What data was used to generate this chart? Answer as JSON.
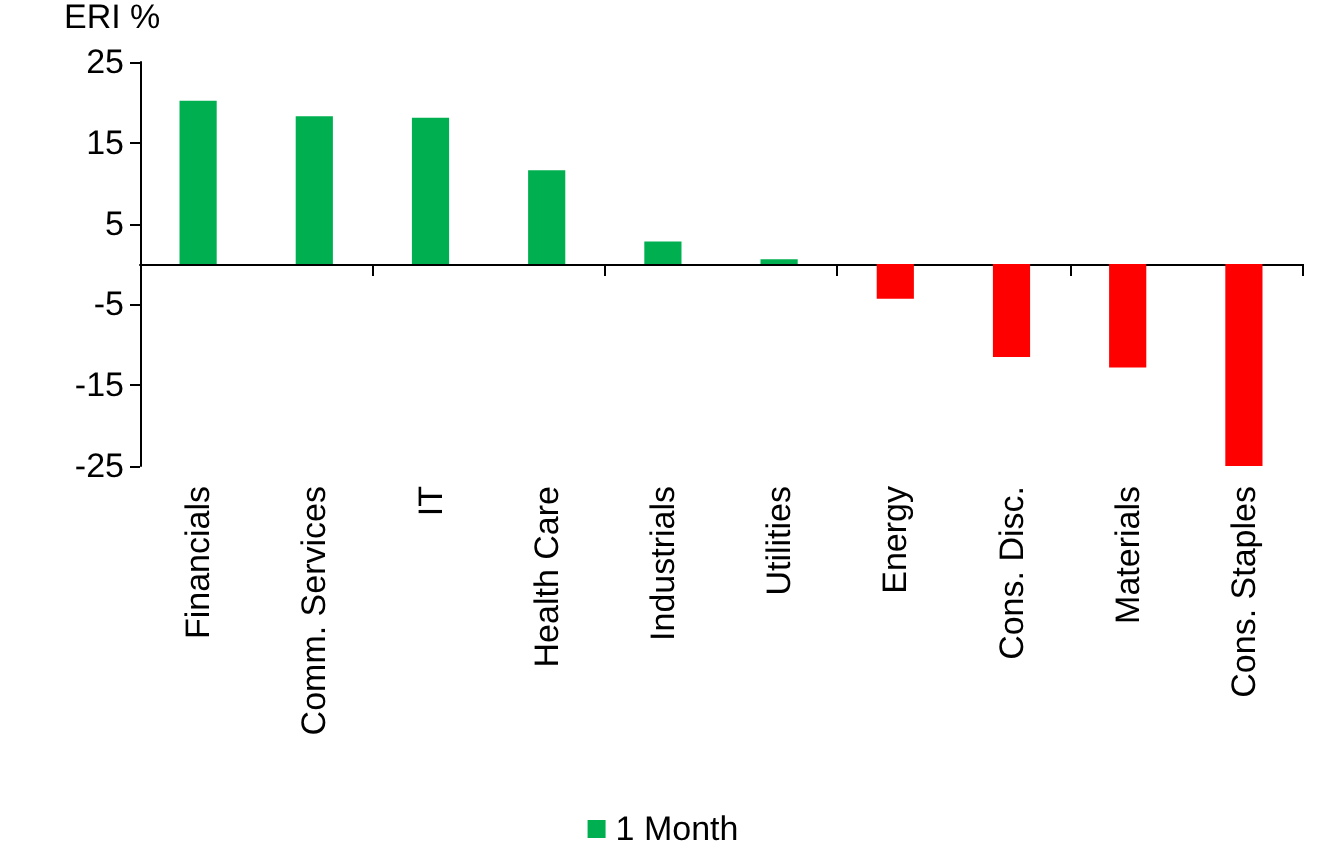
{
  "chart_data": {
    "type": "bar",
    "ylabel": "ERI %",
    "categories": [
      "Financials",
      "Comm. Services",
      "IT",
      "Health Care",
      "Industrials",
      "Utilities",
      "Energy",
      "Cons. Disc.",
      "Materials",
      "Cons. Staples"
    ],
    "series": [
      {
        "name": "1 Month",
        "color": "#00b050",
        "colors": [
          "#00b050",
          "#00b050",
          "#00b050",
          "#00b050",
          "#00b050",
          "#00b050",
          "#ff0000",
          "#ff0000",
          "#ff0000",
          "#ff0000"
        ],
        "values": [
          20.2,
          18.3,
          18.1,
          11.6,
          2.8,
          0.6,
          -4.3,
          -11.5,
          -12.8,
          -25
        ]
      }
    ],
    "ylim": [
      -25,
      25
    ],
    "yticks": [
      -25,
      -15,
      -5,
      5,
      15,
      25
    ],
    "grid": false,
    "legend": "bottom"
  }
}
